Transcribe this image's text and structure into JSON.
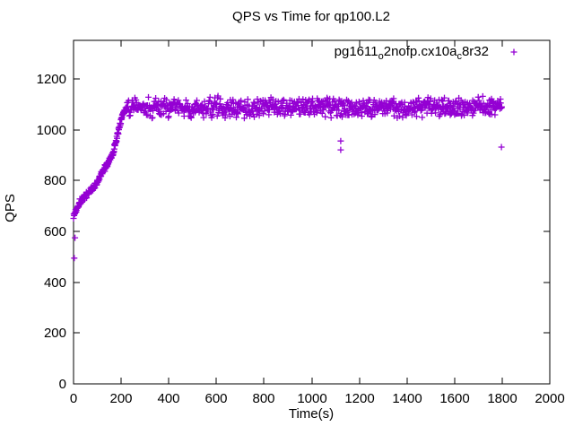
{
  "page": {
    "background": "#ffffff",
    "text_color": "#000000"
  },
  "chart_data": {
    "type": "scatter",
    "title": "QPS vs Time for qp100.L2",
    "xlabel": "Time(s)",
    "ylabel": "QPS",
    "xlim": [
      0,
      2000
    ],
    "ylim": [
      0,
      1352
    ],
    "xticks": [
      0,
      200,
      400,
      600,
      800,
      1000,
      1200,
      1400,
      1600,
      1800,
      2000
    ],
    "yticks": [
      0,
      200,
      400,
      600,
      800,
      1000,
      1200
    ],
    "grid": false,
    "tick_style": "inward-mirrored",
    "background": "#ffffff",
    "legend": {
      "position": "top-right-inside",
      "entries": [
        {
          "label": "pg1611_o2nofp.cx10a_c8r32",
          "label_segments": [
            {
              "text": "pg1611",
              "sub": false
            },
            {
              "text": "o",
              "sub": true
            },
            {
              "text": "2nofp.cx10a",
              "sub": false
            },
            {
              "text": "c",
              "sub": true
            },
            {
              "text": "8r32",
              "sub": false
            }
          ],
          "marker": "plus",
          "color": "#9400D3"
        }
      ]
    },
    "series": [
      {
        "name": "pg1611_o2nofp.cx10a_c8r32",
        "marker": "plus",
        "color": "#9400D3",
        "summary": {
          "description": "QPS ramps from ~660 at t=0 up to ~1085 by t~225s, then holds a noisy plateau around ~1090 QPS (band roughly 1040-1140) until t=1800s; no data after t=1800s.",
          "ramp_anchors_t_qps": [
            [
              0,
              660
            ],
            [
              25,
              715
            ],
            [
              90,
              780
            ],
            [
              165,
              905
            ],
            [
              205,
              1060
            ],
            [
              225,
              1085
            ]
          ],
          "ramp_jitter_qps": 14,
          "ramp_step_s": 1.1,
          "plateau_t_range": [
            225,
            1800
          ],
          "plateau_mean_qps": 1089,
          "plateau_jitter_qps": 46,
          "plateau_step_s": 1.9,
          "outliers_t_qps": [
            [
              3,
              495
            ],
            [
              6,
              575
            ],
            [
              1122,
              956
            ],
            [
              1122,
              921
            ],
            [
              1797,
              932
            ]
          ],
          "seed": 1337
        }
      }
    ]
  }
}
